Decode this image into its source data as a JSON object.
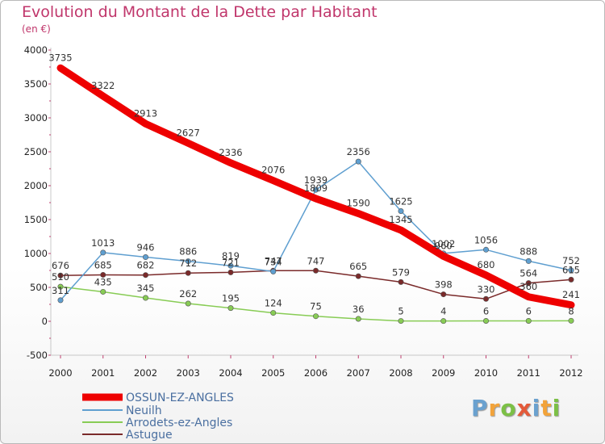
{
  "title": "Evolution du Montant de la Dette par Habitant",
  "subtitle": "(en €)",
  "logo": {
    "text": "Proxiti"
  },
  "chart_data": {
    "type": "line",
    "x": [
      2000,
      2001,
      2002,
      2003,
      2004,
      2005,
      2006,
      2007,
      2008,
      2009,
      2010,
      2011,
      2012
    ],
    "ylim": [
      -500,
      4000
    ],
    "yticks": [
      -500,
      0,
      500,
      1000,
      1500,
      2000,
      2500,
      3000,
      3500,
      4000
    ],
    "grid": false,
    "legend_position": "bottom-left",
    "series": [
      {
        "name": "OSSUN-EZ-ANGLES",
        "color": "#ee0000",
        "values": [
          3735,
          3322,
          2913,
          2627,
          2336,
          2076,
          1809,
          1590,
          1345,
          960,
          680,
          360,
          241
        ]
      },
      {
        "name": "Neuilh",
        "color": "#5f9fd0",
        "values": [
          311,
          1013,
          946,
          886,
          819,
          734,
          1939,
          2356,
          1625,
          1002,
          1056,
          888,
          752
        ]
      },
      {
        "name": "Arrodets-ez-Angles",
        "color": "#88cc55",
        "values": [
          510,
          435,
          345,
          262,
          195,
          124,
          75,
          36,
          5,
          4,
          6,
          6,
          8
        ]
      },
      {
        "name": "Astugue",
        "color": "#7a2a2a",
        "values": [
          676,
          685,
          682,
          712,
          721,
          747,
          747,
          665,
          579,
          398,
          330,
          564,
          615
        ]
      }
    ]
  }
}
